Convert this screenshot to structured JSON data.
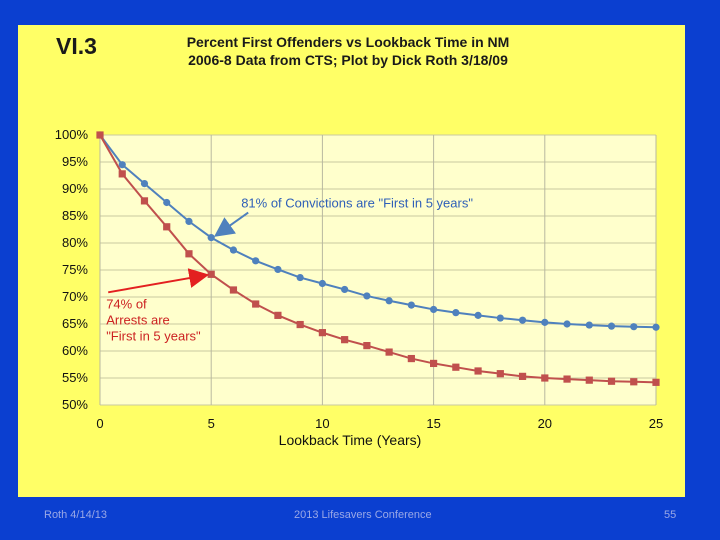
{
  "slide": {
    "label": "VI.3"
  },
  "footer": {
    "left": "Roth 4/14/13",
    "center": "2013 Lifesavers Conference",
    "right": "55"
  },
  "colors": {
    "background": "#0b3fd0",
    "slide": "#ffff66",
    "series1": "#4f81bd",
    "series2": "#c0504d",
    "arrow_blue": "#4f81bd",
    "arrow_red": "#e32020"
  },
  "chart_data": {
    "type": "line",
    "title": "Percent First Offenders vs Lookback Time in NM",
    "subtitle": "2006-8 Data from CTS; Plot by Dick Roth 3/18/09",
    "xlabel": "Lookback Time (Years)",
    "ylabel": "",
    "xlim": [
      0,
      25
    ],
    "ylim": [
      50,
      100
    ],
    "xticks": [
      0,
      5,
      10,
      15,
      20,
      25
    ],
    "xtick_labels": [
      "0",
      "5",
      "10",
      "15",
      "20",
      "25"
    ],
    "yticks": [
      50,
      55,
      60,
      65,
      70,
      75,
      80,
      85,
      90,
      95,
      100
    ],
    "ytick_labels": [
      "50%",
      "55%",
      "60%",
      "65%",
      "70%",
      "75%",
      "80%",
      "85%",
      "90%",
      "95%",
      "100%"
    ],
    "x": [
      0,
      1,
      2,
      3,
      4,
      5,
      6,
      7,
      8,
      9,
      10,
      11,
      12,
      13,
      14,
      15,
      16,
      17,
      18,
      19,
      20,
      21,
      22,
      23,
      24,
      25
    ],
    "series": [
      {
        "name": "Convictions",
        "marker": "circle",
        "values": [
          100,
          94.5,
          91,
          87.5,
          84,
          81,
          78.7,
          76.7,
          75.1,
          73.6,
          72.5,
          71.4,
          70.2,
          69.3,
          68.5,
          67.7,
          67.1,
          66.6,
          66.1,
          65.7,
          65.3,
          65.0,
          64.8,
          64.6,
          64.5,
          64.4
        ]
      },
      {
        "name": "Arrests",
        "marker": "square",
        "values": [
          100,
          92.8,
          87.8,
          83.0,
          78.0,
          74.2,
          71.3,
          68.7,
          66.6,
          64.9,
          63.4,
          62.1,
          61.0,
          59.8,
          58.6,
          57.7,
          57.0,
          56.3,
          55.8,
          55.3,
          55.0,
          54.8,
          54.6,
          54.4,
          54.3,
          54.2
        ]
      }
    ],
    "annotations": [
      {
        "text": "81%  of  Convictions are \"First in 5 years\"",
        "series": "Convictions",
        "x": 5
      },
      {
        "lines": [
          "74% of",
          "Arrests are",
          "\"First in 5 years\""
        ],
        "series": "Arrests",
        "x": 5
      }
    ],
    "grid": true,
    "legend": "none"
  }
}
